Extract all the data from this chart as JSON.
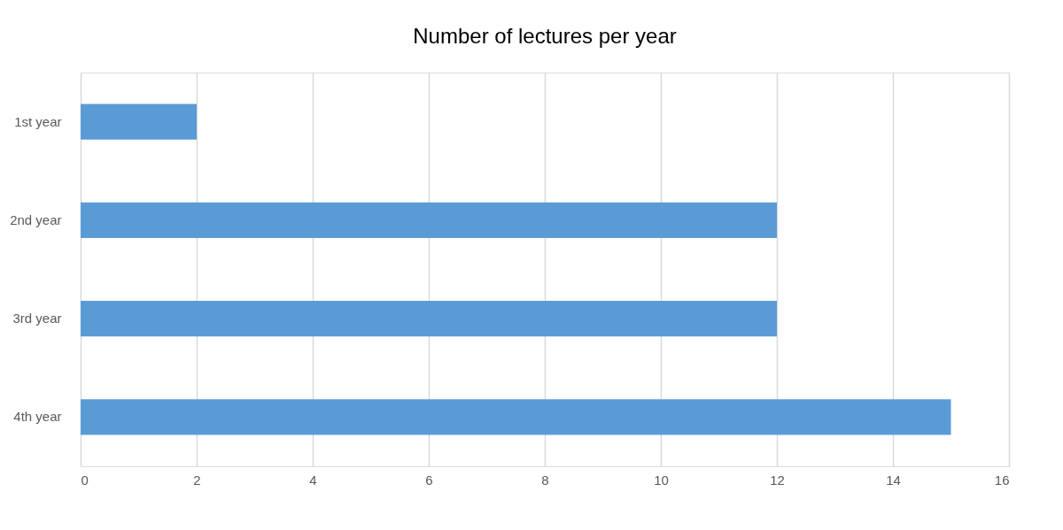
{
  "chart_data": {
    "type": "bar",
    "orientation": "horizontal",
    "title": "Number of lectures per year",
    "categories": [
      "1st year",
      "2nd year",
      "3rd year",
      "4th year"
    ],
    "values": [
      2,
      12,
      12,
      15
    ],
    "color": "#5b9bd5",
    "xlim": [
      0,
      16
    ],
    "xticks": [
      0,
      2,
      4,
      6,
      8,
      10,
      12,
      14,
      16
    ],
    "grid": "x"
  }
}
